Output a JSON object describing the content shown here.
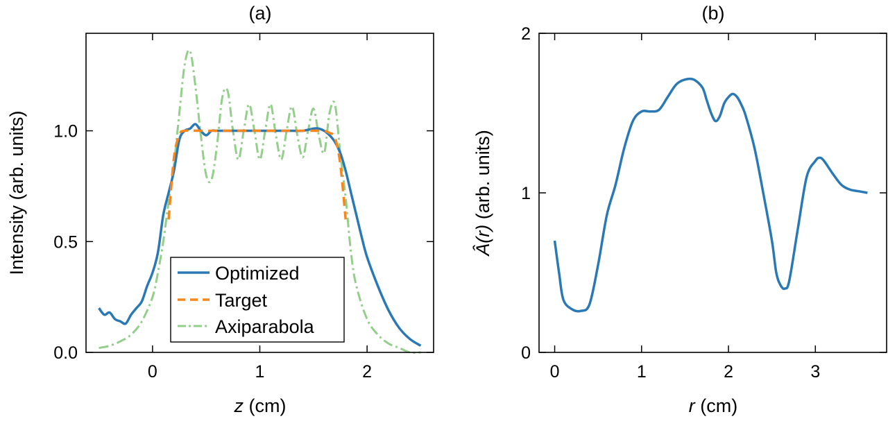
{
  "chart_data": [
    {
      "type": "line",
      "title": "(a)",
      "xlabel": {
        "var": "z",
        "unit": " (cm)"
      },
      "ylabel": "Intensity (arb. units)",
      "xlim": [
        -0.62,
        2.62
      ],
      "ylim": [
        0.0,
        1.44
      ],
      "xticks": [
        0,
        1,
        2
      ],
      "xtick_labels": [
        "0",
        "1",
        "2"
      ],
      "yticks": [
        0.0,
        0.5,
        1.0
      ],
      "ytick_labels": [
        "0.0",
        "0.5",
        "1.0"
      ],
      "legend": {
        "location": "lower-center",
        "entries": [
          {
            "name": "Optimized",
            "color": "#2a78b4",
            "style": "solid"
          },
          {
            "name": "Target",
            "color": "#f7861c",
            "style": "dashed"
          },
          {
            "name": "Axiparabola",
            "color": "#2ca02c",
            "style": "dashdot",
            "line_color": "#93cf8b"
          }
        ]
      },
      "series": [
        {
          "name": "Axiparabola",
          "color": "#93cf8b",
          "style": "dashdot",
          "x": [
            -0.5,
            -0.4,
            -0.3,
            -0.2,
            -0.1,
            0.0,
            0.05,
            0.1,
            0.15,
            0.2,
            0.25,
            0.3,
            0.35,
            0.4,
            0.45,
            0.5,
            0.55,
            0.6,
            0.65,
            0.7,
            0.75,
            0.8,
            0.85,
            0.9,
            0.95,
            1.0,
            1.05,
            1.1,
            1.15,
            1.2,
            1.25,
            1.3,
            1.35,
            1.4,
            1.45,
            1.5,
            1.55,
            1.6,
            1.65,
            1.7,
            1.75,
            1.8,
            1.85,
            1.9,
            2.0,
            2.1,
            2.2,
            2.3,
            2.4,
            2.5
          ],
          "y": [
            0.02,
            0.03,
            0.05,
            0.08,
            0.14,
            0.25,
            0.36,
            0.5,
            0.68,
            0.85,
            1.08,
            1.3,
            1.36,
            1.2,
            0.98,
            0.8,
            0.78,
            0.93,
            1.15,
            1.18,
            1.0,
            0.87,
            1.0,
            1.12,
            1.0,
            0.87,
            1.0,
            1.12,
            0.98,
            0.87,
            1.0,
            1.11,
            0.98,
            0.88,
            1.0,
            1.1,
            0.98,
            0.9,
            1.08,
            1.12,
            0.9,
            0.7,
            0.45,
            0.3,
            0.15,
            0.08,
            0.04,
            0.02,
            0.0,
            0.0
          ]
        },
        {
          "name": "Optimized",
          "color": "#2a78b4",
          "style": "solid",
          "x": [
            -0.5,
            -0.45,
            -0.4,
            -0.35,
            -0.3,
            -0.25,
            -0.2,
            -0.15,
            -0.1,
            -0.05,
            0.0,
            0.05,
            0.1,
            0.15,
            0.2,
            0.25,
            0.3,
            0.35,
            0.4,
            0.45,
            0.5,
            0.55,
            0.6,
            0.7,
            0.8,
            0.9,
            1.0,
            1.1,
            1.2,
            1.3,
            1.4,
            1.5,
            1.55,
            1.6,
            1.65,
            1.7,
            1.75,
            1.8,
            1.85,
            1.9,
            1.95,
            2.0,
            2.1,
            2.2,
            2.3,
            2.4,
            2.5
          ],
          "y": [
            0.2,
            0.17,
            0.18,
            0.15,
            0.14,
            0.13,
            0.17,
            0.2,
            0.23,
            0.3,
            0.36,
            0.45,
            0.62,
            0.72,
            0.82,
            0.96,
            1.0,
            1.01,
            1.03,
            1.0,
            0.98,
            1.0,
            1.0,
            1.0,
            1.0,
            1.0,
            1.0,
            1.0,
            1.0,
            1.0,
            1.0,
            1.01,
            1.01,
            1.0,
            0.98,
            0.95,
            0.9,
            0.82,
            0.72,
            0.62,
            0.52,
            0.43,
            0.3,
            0.19,
            0.11,
            0.06,
            0.03
          ]
        },
        {
          "name": "Target",
          "color": "#f7861c",
          "style": "dashed",
          "x": [
            0.15,
            0.2,
            0.25,
            0.3,
            0.5,
            1.0,
            1.5,
            1.6,
            1.65,
            1.7,
            1.75,
            1.8
          ],
          "y": [
            0.6,
            0.88,
            0.98,
            1.0,
            1.0,
            1.0,
            1.0,
            1.0,
            0.99,
            0.97,
            0.85,
            0.6
          ]
        }
      ]
    },
    {
      "type": "line",
      "title": "(b)",
      "xlabel": {
        "var": "r",
        "unit": " (cm)"
      },
      "ylabel": {
        "var": "Â(r)",
        "unit": " (arb. units)"
      },
      "xlim": [
        -0.18,
        3.82
      ],
      "ylim": [
        0,
        2
      ],
      "xticks": [
        0,
        1,
        2,
        3
      ],
      "xtick_labels": [
        "0",
        "1",
        "2",
        "3"
      ],
      "yticks": [
        0,
        1,
        2
      ],
      "ytick_labels": [
        "0",
        "1",
        "2"
      ],
      "series": [
        {
          "name": "A(r)",
          "color": "#2a78b4",
          "style": "solid",
          "x": [
            0.0,
            0.05,
            0.1,
            0.2,
            0.3,
            0.4,
            0.5,
            0.6,
            0.7,
            0.8,
            0.9,
            1.0,
            1.1,
            1.2,
            1.3,
            1.4,
            1.5,
            1.6,
            1.7,
            1.75,
            1.8,
            1.85,
            1.9,
            1.95,
            2.0,
            2.05,
            2.1,
            2.15,
            2.2,
            2.3,
            2.4,
            2.5,
            2.55,
            2.6,
            2.65,
            2.7,
            2.8,
            2.9,
            3.0,
            3.05,
            3.1,
            3.2,
            3.3,
            3.4,
            3.5,
            3.6
          ],
          "y": [
            0.7,
            0.5,
            0.33,
            0.27,
            0.26,
            0.3,
            0.55,
            0.86,
            1.05,
            1.28,
            1.45,
            1.51,
            1.51,
            1.52,
            1.6,
            1.68,
            1.71,
            1.71,
            1.66,
            1.58,
            1.5,
            1.45,
            1.48,
            1.56,
            1.6,
            1.62,
            1.6,
            1.55,
            1.48,
            1.28,
            1.0,
            0.7,
            0.5,
            0.42,
            0.4,
            0.45,
            0.78,
            1.1,
            1.2,
            1.22,
            1.2,
            1.12,
            1.05,
            1.02,
            1.01,
            1.0
          ]
        }
      ]
    }
  ]
}
